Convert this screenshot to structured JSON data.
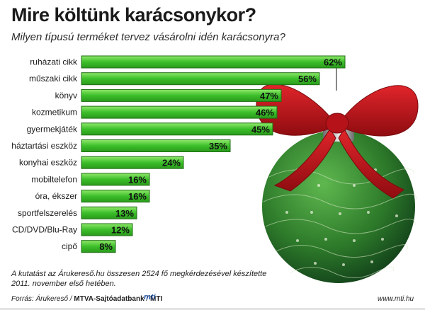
{
  "header": {
    "title": "Mire költünk karácsonykor?",
    "subtitle": "Milyen típusú terméket tervez vásárolni idén karácsonyra?"
  },
  "footer": {
    "note_line1": "A kutatást az Árukereső.hu összesen 2524 fő megkérdezésével készítette",
    "note_line2": "2011. november első hetében.",
    "source_prefix": "Forrás: Árukereső /",
    "source_bold1": "MTVA-Sajtóadatbank",
    "source_sep": "/",
    "source_bold2": "MTI",
    "logo_text": "mti",
    "site": "www.mti.hu"
  },
  "colors": {
    "bar_fill": "#3cbf2a",
    "bar_fill_light": "#7ee05e",
    "bar_stroke": "#1f6e14",
    "ornament_green": "#2d7a2a",
    "ribbon_red": "#c8141a"
  },
  "chart_data": {
    "type": "bar",
    "orientation": "horizontal",
    "categories": [
      "ruházati cikk",
      "műszaki cikk",
      "könyv",
      "kozmetikum",
      "gyermekjáték",
      "háztartási eszköz",
      "konyhai eszköz",
      "mobiltelefon",
      "óra, ékszer",
      "sportfelszerelés",
      "CD/DVD/Blu-Ray",
      "cipő"
    ],
    "values": [
      62,
      56,
      47,
      46,
      45,
      35,
      24,
      16,
      16,
      13,
      12,
      8
    ],
    "value_labels": [
      "62%",
      "56%",
      "47%",
      "46%",
      "45%",
      "35%",
      "24%",
      "16%",
      "16%",
      "13%",
      "12%",
      "8%"
    ],
    "unit": "%",
    "xlim": [
      0,
      62
    ],
    "grid": false,
    "legend": "none"
  }
}
